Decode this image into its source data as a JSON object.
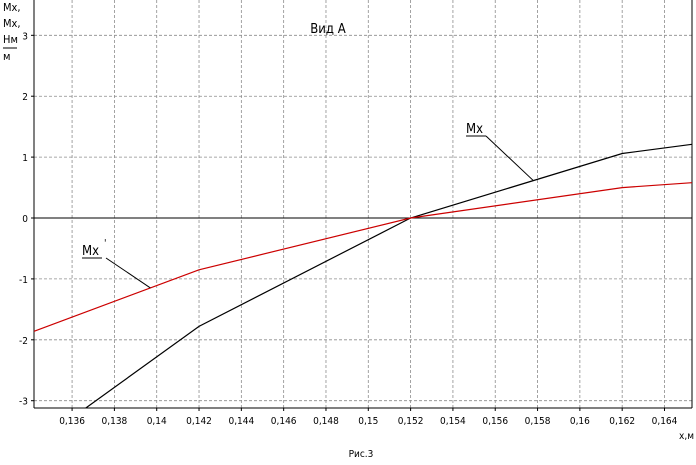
{
  "chart_data": {
    "type": "line",
    "title": "Вид А",
    "caption": "Рис.3",
    "xlabel": "x,м",
    "ylabel_lines": [
      "Mx,",
      "Mx,",
      "Нм",
      "м"
    ],
    "xlim": [
      0.1342,
      0.1653
    ],
    "ylim": [
      -3.12,
      3.58
    ],
    "x_ticks": [
      0.136,
      0.138,
      0.14,
      0.142,
      0.144,
      0.146,
      0.148,
      0.15,
      0.152,
      0.154,
      0.156,
      0.158,
      0.16,
      0.162,
      0.164
    ],
    "x_tick_labels": [
      "0,136",
      "0,138",
      "0,14",
      "0,142",
      "0,144",
      "0,146",
      "0,148",
      "0,15",
      "0,152",
      "0,154",
      "0,156",
      "0,158",
      "0,16",
      "0,162",
      "0,164"
    ],
    "y_ticks": [
      -3,
      -2,
      -1,
      0,
      1,
      2,
      3
    ],
    "y_tick_labels": [
      "-3",
      "-2",
      "-1",
      "0",
      "1",
      "2",
      "3"
    ],
    "grid": true,
    "series": [
      {
        "name": "Mx",
        "color": "#000000",
        "x": [
          0.13665,
          0.142,
          0.152,
          0.162,
          0.1653
        ],
        "y": [
          -3.12,
          -1.78,
          0.0,
          1.06,
          1.21
        ]
      },
      {
        "name": "Mx'",
        "color": "#cc0000",
        "x": [
          0.1342,
          0.142,
          0.152,
          0.162,
          0.1653
        ],
        "y": [
          -1.86,
          -0.85,
          0.0,
          0.5,
          0.58
        ]
      }
    ],
    "annotations": [
      {
        "text": "Mx",
        "series": 0,
        "at_x": 0.1578
      },
      {
        "text": "Mx",
        "prime": "'",
        "series": 1,
        "at_x": 0.1397
      }
    ]
  }
}
